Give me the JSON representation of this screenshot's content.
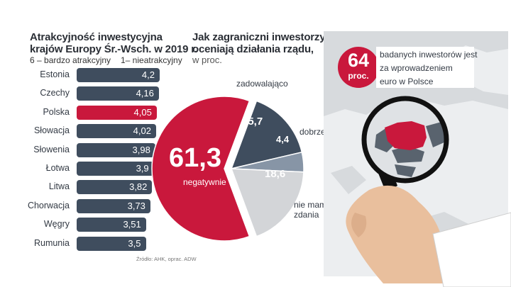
{
  "bar_chart": {
    "title_line1": "Atrakcyjność inwestycyjna",
    "title_line2": "krajów Europy Śr.-Wsch.  w 2019 r.",
    "scale_left": "6 – bardzo atrakcyjny",
    "scale_right": "1– nieatrakcyjny",
    "highlight_color": "#c9183c",
    "bar_color": "#3f4d5e"
  },
  "pie_chart": {
    "title_line1": "Jak zagraniczni inwestorzy",
    "title_line2": "oceniają działania rządu,",
    "unit": "w proc.",
    "labels": {
      "zadowalajaco": "zadowalająco",
      "dobrze": "dobrze",
      "nie_mam_zdania_1": "nie mam",
      "nie_mam_zdania_2": "zdania",
      "negatywnie": "negatywnie"
    },
    "value_labels": {
      "negatywnie": "61,3",
      "zadowalajaco": "15,7",
      "dobrze": "4,4",
      "nie_mam_zdania": "18,6"
    }
  },
  "source": "Źródło: AHK, oprac. ADW",
  "callout": {
    "number": "64",
    "unit": "proc.",
    "line1": "badanych inwestorów jest",
    "line2": "za wprowadzeniem",
    "line3": "euro w Polsce"
  },
  "chart_data": [
    {
      "type": "bar",
      "title": "Atrakcyjność inwestycyjna krajów Europy Śr.-Wsch.  w 2019 r.",
      "categories": [
        "Estonia",
        "Czechy",
        "Polska",
        "Słowacja",
        "Słowenia",
        "Łotwa",
        "Litwa",
        "Chorwacja",
        "Węgry",
        "Rumunia"
      ],
      "values": [
        4.2,
        4.16,
        4.05,
        4.02,
        3.98,
        3.9,
        3.82,
        3.73,
        3.51,
        3.5
      ],
      "value_labels": [
        "4,2",
        "4,16",
        "4,05",
        "4,02",
        "3,98",
        "3,9",
        "3,82",
        "3,73",
        "3,51",
        "3,5"
      ],
      "highlight": "Polska",
      "orientation": "horizontal"
    },
    {
      "type": "pie",
      "title": "Jak zagraniczni inwestorzy oceniają działania rządu, w proc.",
      "slices": [
        {
          "label": "negatywnie",
          "value": 61.3,
          "color": "#c9183c"
        },
        {
          "label": "zadowalająco",
          "value": 15.7,
          "color": "#3f4d5e"
        },
        {
          "label": "dobrze",
          "value": 4.4,
          "color": "#8795a6"
        },
        {
          "label": "nie mam zdania",
          "value": 18.6,
          "color": "#d3d5d8"
        }
      ]
    }
  ]
}
